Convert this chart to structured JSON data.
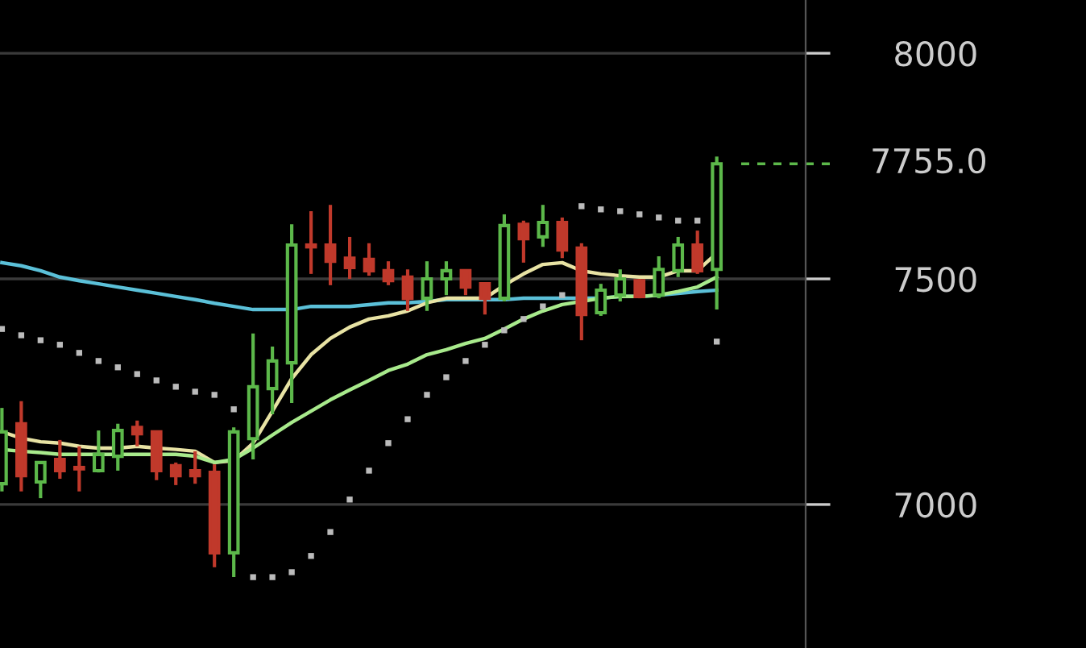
{
  "chart_data": {
    "type": "candlestick",
    "categories": [
      null,
      null,
      null,
      null,
      null,
      null,
      null,
      null,
      null,
      null,
      null,
      null,
      null,
      null,
      null,
      null,
      null,
      null,
      null,
      null,
      null,
      null,
      null,
      null,
      null,
      null,
      null,
      null,
      null,
      null,
      null,
      null,
      null,
      null,
      null,
      null,
      null,
      null
    ],
    "ohlc": [
      [
        7046,
        7214,
        7029,
        7161
      ],
      [
        7179,
        7229,
        7029,
        7064
      ],
      [
        7050,
        7096,
        7014,
        7093
      ],
      [
        7100,
        7143,
        7057,
        7075
      ],
      [
        7082,
        7129,
        7029,
        7079
      ],
      [
        7075,
        7164,
        7071,
        7111
      ],
      [
        7107,
        7179,
        7075,
        7164
      ],
      [
        7171,
        7186,
        7129,
        7157
      ],
      [
        7161,
        7164,
        7054,
        7075
      ],
      [
        7086,
        7093,
        7043,
        7064
      ],
      [
        7075,
        7118,
        7046,
        7064
      ],
      [
        7071,
        7089,
        6861,
        6893
      ],
      [
        6893,
        7171,
        6839,
        7161
      ],
      [
        7146,
        7379,
        7100,
        7261
      ],
      [
        7257,
        7350,
        7200,
        7318
      ],
      [
        7314,
        7621,
        7225,
        7575
      ],
      [
        7575,
        7650,
        7511,
        7571
      ],
      [
        7575,
        7664,
        7486,
        7539
      ],
      [
        7546,
        7593,
        7500,
        7525
      ],
      [
        7543,
        7579,
        7507,
        7518
      ],
      [
        7518,
        7539,
        7486,
        7496
      ],
      [
        7504,
        7521,
        7429,
        7457
      ],
      [
        7457,
        7539,
        7429,
        7500
      ],
      [
        7500,
        7539,
        7464,
        7518
      ],
      [
        7518,
        7521,
        7464,
        7482
      ],
      [
        7489,
        7489,
        7421,
        7457
      ],
      [
        7457,
        7643,
        7450,
        7618
      ],
      [
        7621,
        7629,
        7536,
        7589
      ],
      [
        7593,
        7664,
        7571,
        7625
      ],
      [
        7625,
        7636,
        7546,
        7564
      ],
      [
        7568,
        7579,
        7364,
        7421
      ],
      [
        7425,
        7489,
        7418,
        7475
      ],
      [
        7464,
        7521,
        7450,
        7500
      ],
      [
        7496,
        7500,
        7457,
        7461
      ],
      [
        7464,
        7550,
        7457,
        7521
      ],
      [
        7518,
        7593,
        7504,
        7575
      ],
      [
        7575,
        7607,
        7511,
        7518
      ],
      [
        7521,
        7771,
        7432,
        7755
      ]
    ],
    "colors": [
      "#5cb84a",
      "#c0392b",
      "#5cb84a",
      "#c0392b",
      "#c0392b",
      "#5cb84a",
      "#5cb84a",
      "#c0392b",
      "#c0392b",
      "#c0392b",
      "#c0392b",
      "#c0392b",
      "#5cb84a",
      "#5cb84a",
      "#5cb84a",
      "#5cb84a",
      "#c0392b",
      "#c0392b",
      "#c0392b",
      "#c0392b",
      "#c0392b",
      "#c0392b",
      "#5cb84a",
      "#5cb84a",
      "#c0392b",
      "#c0392b",
      "#5cb84a",
      "#c0392b",
      "#5cb84a",
      "#c0392b",
      "#c0392b",
      "#5cb84a",
      "#5cb84a",
      "#c0392b",
      "#5cb84a",
      "#5cb84a",
      "#c0392b",
      "#5cb84a"
    ],
    "series": [
      {
        "type": "line",
        "color": "#5bc0d8",
        "values": [
          7536,
          7529,
          7518,
          7504,
          7496,
          7489,
          7482,
          7475,
          7468,
          7461,
          7454,
          7446,
          7439,
          7432,
          7432,
          7432,
          7439,
          7439,
          7439,
          7443,
          7447,
          7447,
          7450,
          7454,
          7454,
          7454,
          7454,
          7457,
          7457,
          7457,
          7457,
          7457,
          7461,
          7461,
          7464,
          7468,
          7472,
          7475
        ]
      },
      {
        "type": "line",
        "color": "#e8e3a4",
        "values": [
          7161,
          7147,
          7139,
          7136,
          7129,
          7125,
          7125,
          7129,
          7125,
          7122,
          7118,
          7093,
          7097,
          7136,
          7207,
          7279,
          7332,
          7368,
          7393,
          7411,
          7418,
          7429,
          7447,
          7457,
          7457,
          7457,
          7486,
          7511,
          7532,
          7536,
          7518,
          7511,
          7507,
          7504,
          7504,
          7518,
          7518,
          7557
        ]
      },
      {
        "type": "line",
        "color": "#a8ea8c",
        "values": [
          7122,
          7118,
          7115,
          7111,
          7111,
          7111,
          7111,
          7111,
          7111,
          7111,
          7107,
          7093,
          7100,
          7125,
          7154,
          7182,
          7207,
          7232,
          7254,
          7275,
          7297,
          7311,
          7332,
          7343,
          7357,
          7368,
          7389,
          7411,
          7429,
          7443,
          7450,
          7457,
          7461,
          7461,
          7464,
          7472,
          7482,
          7504
        ]
      },
      {
        "type": "scatter",
        "color": "#bbbbbb",
        "marker": "square",
        "values": [
          7389,
          7375,
          7364,
          7354,
          7336,
          7318,
          7304,
          7289,
          7275,
          7261,
          7250,
          7243,
          7211,
          6839,
          6839,
          6850,
          6886,
          6939,
          7011,
          7075,
          7136,
          7189,
          7243,
          7282,
          7318,
          7354,
          7386,
          7411,
          7439,
          7464,
          7661,
          7654,
          7650,
          7643,
          7636,
          7629,
          7629,
          7361
        ]
      }
    ],
    "ylim": [
      6682,
      8118
    ],
    "yticks": [
      7000,
      7500,
      8000
    ],
    "tick_labels": "y",
    "ref_lines": [
      {
        "axis": "y",
        "value": 7755,
        "label": "7755.0",
        "color": "#5cb84a",
        "line_style": "dashed"
      }
    ],
    "grid": "y",
    "legend": false
  }
}
